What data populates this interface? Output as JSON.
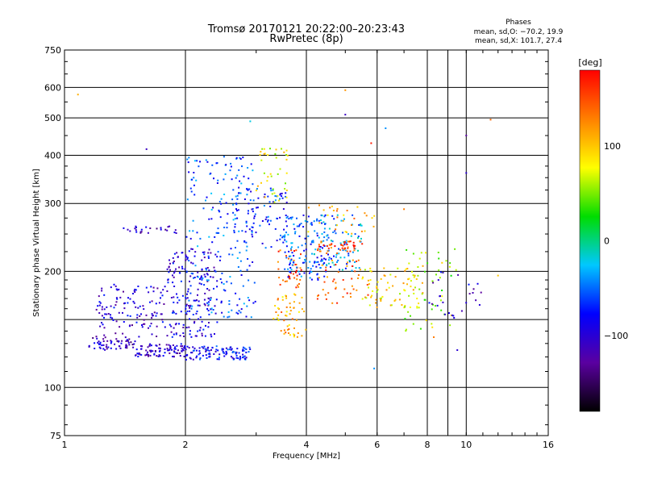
{
  "header": {
    "title_line1": "Tromsø 20170121 20:22:00–20:23:43",
    "title_line2": "RwPretec (8p)",
    "phases_label": "Phases",
    "stats_o": "mean, sd,O: −70.2, 19.9",
    "stats_x": "mean, sd,X: 101.7, 27.4"
  },
  "chart_data": {
    "type": "scatter",
    "xlabel": "Frequency [MHz]",
    "ylabel": "Stationary phase Virtual Height [km]",
    "x_scale": "log",
    "y_scale": "log",
    "xlim": [
      1,
      16
    ],
    "ylim": [
      75,
      750
    ],
    "x_ticks": [
      1,
      2,
      4,
      6,
      8,
      10,
      16
    ],
    "x_tick_labels": [
      "1",
      "2",
      "4",
      "6",
      "8",
      "10",
      "16"
    ],
    "x_extra_gridlines": [
      9
    ],
    "y_ticks": [
      75,
      100,
      200,
      300,
      400,
      500,
      600,
      750
    ],
    "y_tick_labels": [
      "75",
      "100",
      "200",
      "300",
      "400",
      "500",
      "600",
      "750"
    ],
    "y_extra_gridlines": [
      150
    ],
    "grid": true,
    "colorbar": {
      "label": "[deg]",
      "range": [
        -180,
        180
      ],
      "ticks": [
        100,
        0,
        -100
      ],
      "tick_labels": [
        "100",
        "0",
        "−100"
      ],
      "colors": [
        "#000000",
        "#5a00a0",
        "#0000ff",
        "#00c8ff",
        "#00dd00",
        "#ffff00",
        "#ff8000",
        "#ff0000"
      ]
    },
    "clusters": [
      {
        "f": [
          1.15,
          1.5
        ],
        "h": [
          125,
          135
        ],
        "phase": -110,
        "n": 60
      },
      {
        "f": [
          1.5,
          2.0
        ],
        "h": [
          120,
          130
        ],
        "phase": -105,
        "n": 90
      },
      {
        "f": [
          2.0,
          2.9
        ],
        "h": [
          118,
          128
        ],
        "phase": -80,
        "n": 110
      },
      {
        "f": [
          1.2,
          1.8
        ],
        "h": [
          135,
          185
        ],
        "phase": -100,
        "n": 120
      },
      {
        "f": [
          1.8,
          2.4
        ],
        "h": [
          135,
          230
        ],
        "phase": -95,
        "n": 180
      },
      {
        "f": [
          2.0,
          3.0
        ],
        "h": [
          150,
          400
        ],
        "phase": -60,
        "n": 220
      },
      {
        "f": [
          1.4,
          1.9
        ],
        "h": [
          250,
          262
        ],
        "phase": -110,
        "n": 25
      },
      {
        "f": [
          2.6,
          3.6
        ],
        "h": [
          230,
          330
        ],
        "phase": -70,
        "n": 80
      },
      {
        "f": [
          3.0,
          3.6
        ],
        "h": [
          300,
          420
        ],
        "phase": 80,
        "n": 40
      },
      {
        "f": [
          3.3,
          4.0
        ],
        "h": [
          135,
          175
        ],
        "phase": 110,
        "n": 55
      },
      {
        "f": [
          3.4,
          3.9
        ],
        "h": [
          180,
          230
        ],
        "phase": 150,
        "n": 40
      },
      {
        "f": [
          3.5,
          4.6
        ],
        "h": [
          190,
          280
        ],
        "phase": -60,
        "n": 130
      },
      {
        "f": [
          4.1,
          5.5
        ],
        "h": [
          200,
          280
        ],
        "phase": -40,
        "n": 90
      },
      {
        "f": [
          4.2,
          5.8
        ],
        "h": [
          165,
          240
        ],
        "phase": 140,
        "n": 60
      },
      {
        "f": [
          4.3,
          5.3
        ],
        "h": [
          225,
          240
        ],
        "phase": 150,
        "n": 35
      },
      {
        "f": [
          5.5,
          7.8
        ],
        "h": [
          160,
          210
        ],
        "phase": 90,
        "n": 70
      },
      {
        "f": [
          7.0,
          9.5
        ],
        "h": [
          140,
          230
        ],
        "phase": 60,
        "n": 55
      },
      {
        "f": [
          8.0,
          11.0
        ],
        "h": [
          150,
          200
        ],
        "phase": -100,
        "n": 25
      },
      {
        "f": [
          4.0,
          6.0
        ],
        "h": [
          250,
          300
        ],
        "phase": 110,
        "n": 30
      }
    ],
    "scattered_points": [
      {
        "f": 1.08,
        "h": 575,
        "phase": 110
      },
      {
        "f": 1.6,
        "h": 415,
        "phase": -110
      },
      {
        "f": 2.9,
        "h": 490,
        "phase": -20
      },
      {
        "f": 5.0,
        "h": 590,
        "phase": 120
      },
      {
        "f": 5.0,
        "h": 510,
        "phase": -110
      },
      {
        "f": 5.8,
        "h": 430,
        "phase": 170
      },
      {
        "f": 7.0,
        "h": 290,
        "phase": 130
      },
      {
        "f": 5.9,
        "h": 112,
        "phase": -40
      },
      {
        "f": 8.3,
        "h": 135,
        "phase": 130
      },
      {
        "f": 10.0,
        "h": 450,
        "phase": -130
      },
      {
        "f": 10.0,
        "h": 360,
        "phase": -100
      },
      {
        "f": 11.5,
        "h": 495,
        "phase": 140
      },
      {
        "f": 12.0,
        "h": 195,
        "phase": 100
      },
      {
        "f": 9.5,
        "h": 125,
        "phase": -100
      },
      {
        "f": 10.2,
        "h": 175,
        "phase": -130
      },
      {
        "f": 6.3,
        "h": 470,
        "phase": -40
      }
    ]
  }
}
